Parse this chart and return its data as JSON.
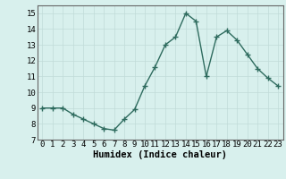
{
  "x": [
    0,
    1,
    2,
    3,
    4,
    5,
    6,
    7,
    8,
    9,
    10,
    11,
    12,
    13,
    14,
    15,
    16,
    17,
    18,
    19,
    20,
    21,
    22,
    23
  ],
  "y": [
    9.0,
    9.0,
    9.0,
    8.6,
    8.3,
    8.0,
    7.7,
    7.6,
    8.3,
    8.9,
    10.4,
    11.6,
    13.0,
    13.5,
    15.0,
    14.5,
    11.0,
    13.5,
    13.9,
    13.3,
    12.4,
    11.5,
    10.9,
    10.4
  ],
  "line_color": "#2e6b5e",
  "marker": "+",
  "markersize": 4,
  "linewidth": 1.0,
  "bg_color": "#d8f0ed",
  "grid_color": "#c0dbd8",
  "xlabel": "Humidex (Indice chaleur)",
  "xlim": [
    -0.5,
    23.5
  ],
  "ylim": [
    7,
    15.5
  ],
  "yticks": [
    7,
    8,
    9,
    10,
    11,
    12,
    13,
    14,
    15
  ],
  "xticks": [
    0,
    1,
    2,
    3,
    4,
    5,
    6,
    7,
    8,
    9,
    10,
    11,
    12,
    13,
    14,
    15,
    16,
    17,
    18,
    19,
    20,
    21,
    22,
    23
  ],
  "tick_fontsize": 6.5,
  "xlabel_fontsize": 7.5,
  "xlabel_fontweight": "bold"
}
